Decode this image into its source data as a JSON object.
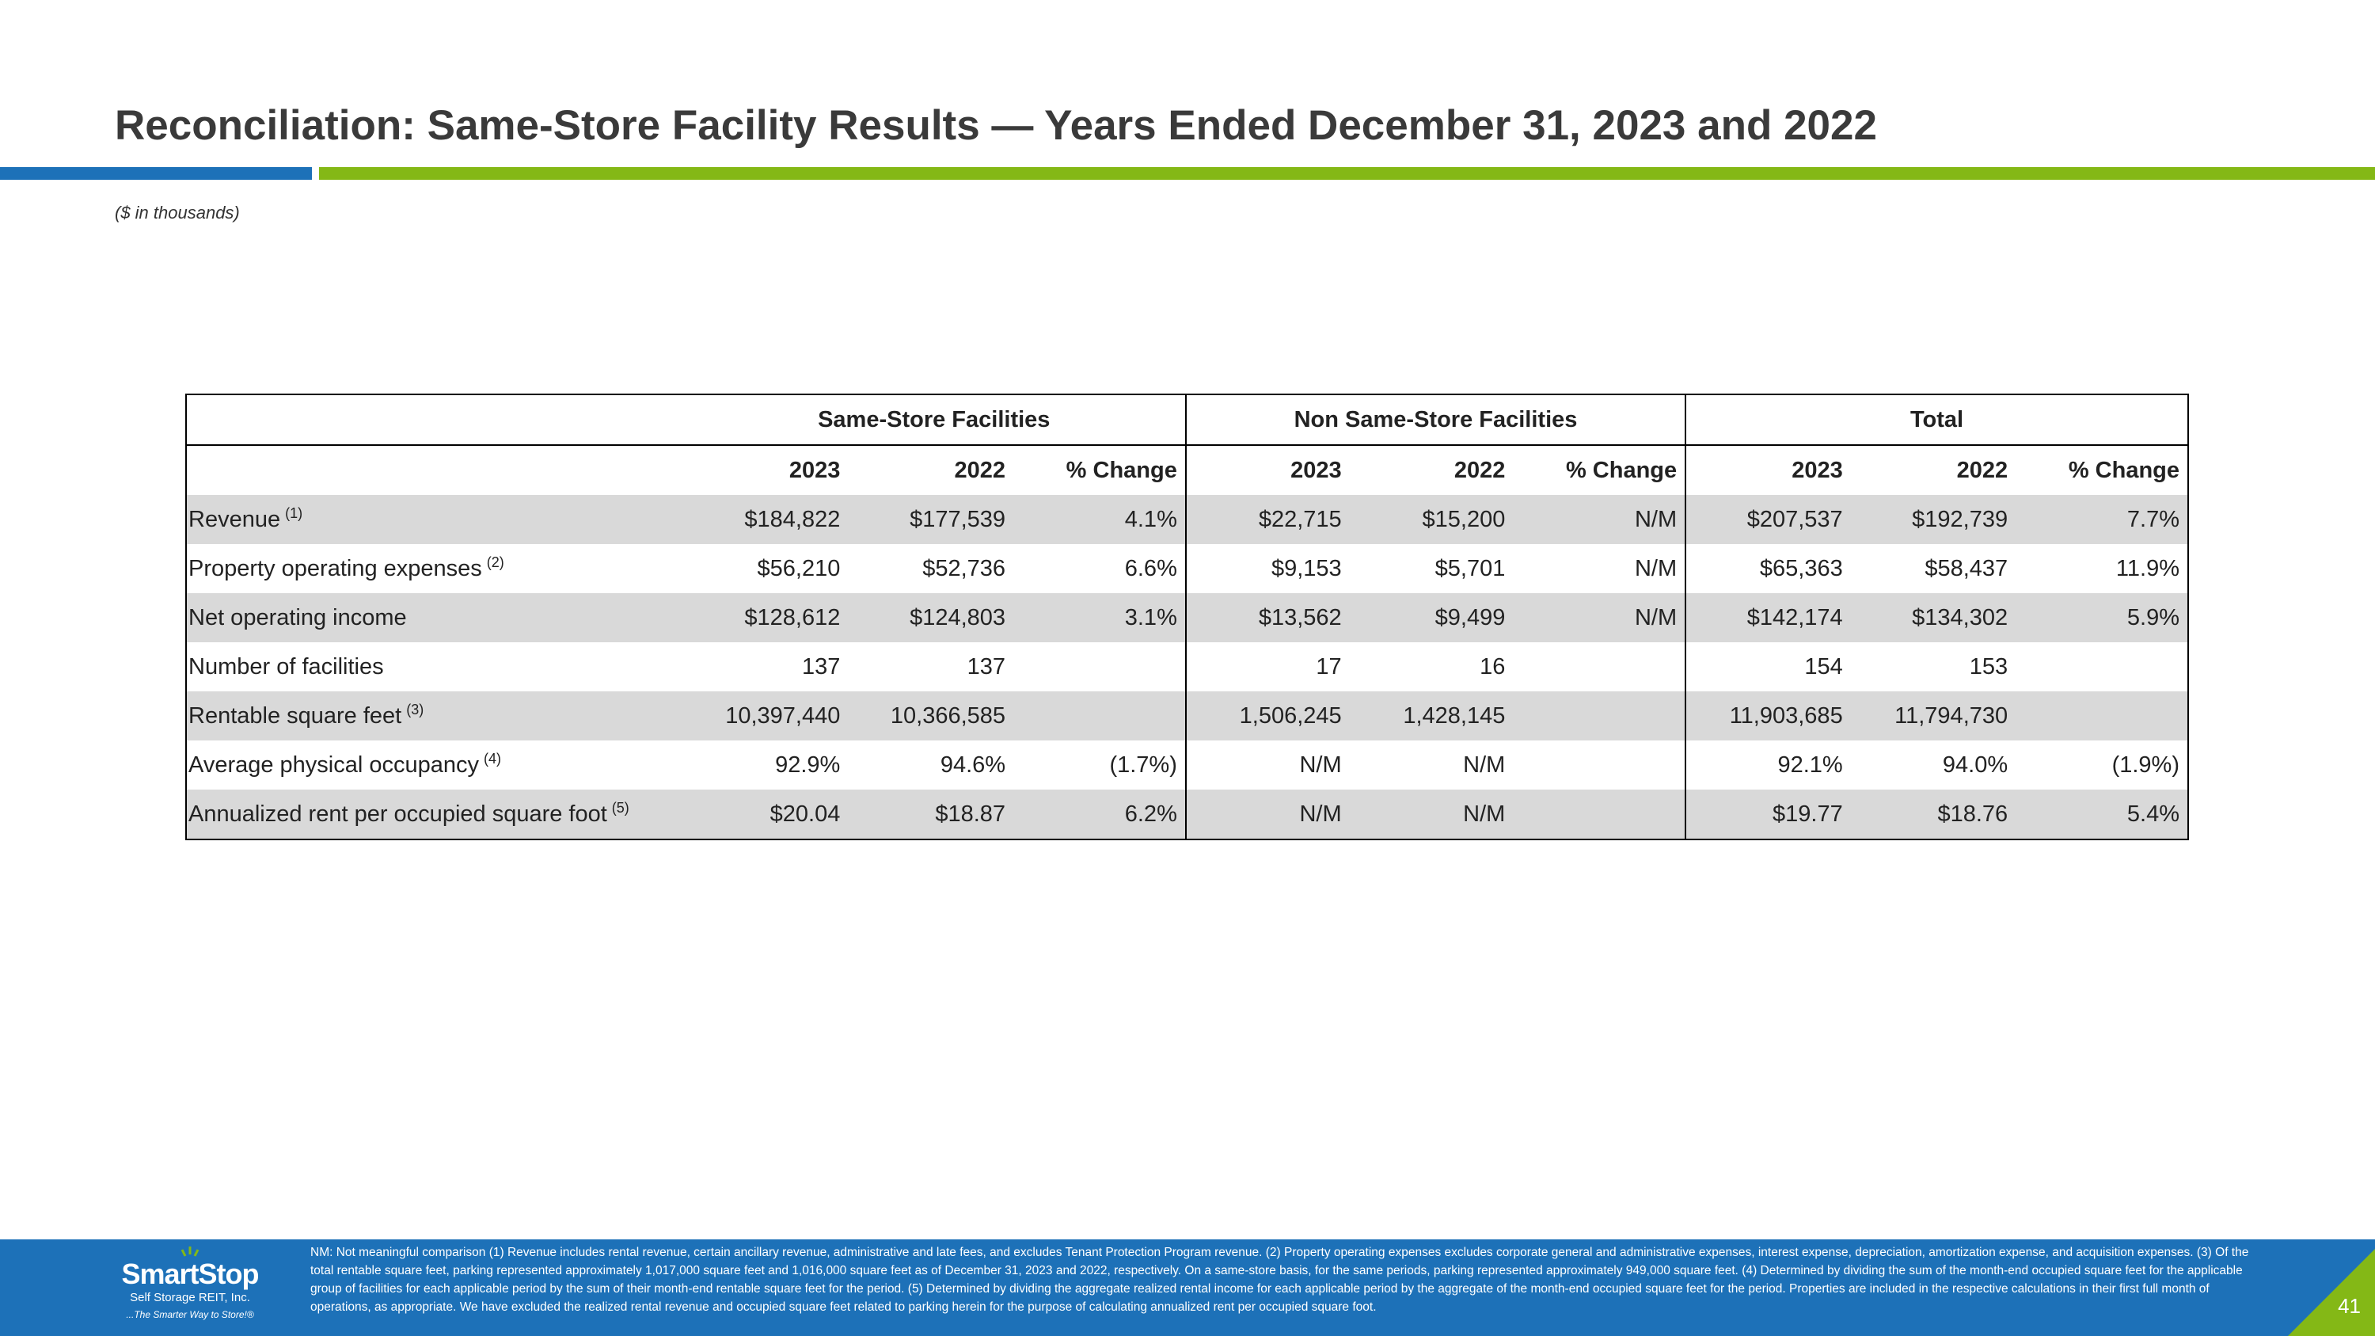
{
  "header": {
    "title": "Reconciliation: Same-Store Facility Results — Years Ended December 31, 2023 and 2022",
    "subtitle": "($ in thousands)",
    "colors": {
      "blue": "#1d71b8",
      "green": "#84b816"
    }
  },
  "table": {
    "groups": [
      "Same-Store Facilities",
      "Non Same-Store Facilities",
      "Total"
    ],
    "year_cols": [
      "2023",
      "2022",
      "% Change",
      "2023",
      "2022",
      "% Change",
      "2023",
      "2022",
      "% Change"
    ],
    "rows": [
      {
        "label": "Revenue",
        "note": "(1)",
        "cells": [
          "$184,822",
          "$177,539",
          "4.1%",
          "$22,715",
          "$15,200",
          "N/M",
          "$207,537",
          "$192,739",
          "7.7%"
        ]
      },
      {
        "label": "Property operating expenses",
        "note": "(2)",
        "cells": [
          "$56,210",
          "$52,736",
          "6.6%",
          "$9,153",
          "$5,701",
          "N/M",
          "$65,363",
          "$58,437",
          "11.9%"
        ]
      },
      {
        "label": "Net operating income",
        "note": "",
        "cells": [
          "$128,612",
          "$124,803",
          "3.1%",
          "$13,562",
          "$9,499",
          "N/M",
          "$142,174",
          "$134,302",
          "5.9%"
        ]
      },
      {
        "label": "Number of facilities",
        "note": "",
        "cells": [
          "137",
          "137",
          "",
          "17",
          "16",
          "",
          "154",
          "153",
          ""
        ]
      },
      {
        "label": "Rentable square feet",
        "note": "(3)",
        "cells": [
          "10,397,440",
          "10,366,585",
          "",
          "1,506,245",
          "1,428,145",
          "",
          "11,903,685",
          "11,794,730",
          ""
        ]
      },
      {
        "label": "Average physical occupancy",
        "note": "(4)",
        "cells": [
          "92.9%",
          "94.6%",
          "(1.7%)",
          "N/M",
          "N/M",
          "",
          "92.1%",
          "94.0%",
          "(1.9%)"
        ]
      },
      {
        "label": "Annualized rent per occupied square foot",
        "note": "(5)",
        "cells": [
          "$20.04",
          "$18.87",
          "6.2%",
          "N/M",
          "N/M",
          "",
          "$19.77",
          "$18.76",
          "5.4%"
        ]
      }
    ]
  },
  "footer": {
    "logo": {
      "brand": "SmartStop",
      "company": "Self Storage REIT, Inc.",
      "tagline": "...The Smarter Way to Store!®"
    },
    "footnote": "NM: Not meaningful comparison  (1) Revenue includes rental revenue, certain ancillary revenue, administrative and late fees, and excludes Tenant Protection Program revenue. (2) Property operating expenses excludes corporate general and administrative expenses, interest expense, depreciation, amortization expense, and acquisition expenses. (3) Of the total rentable square feet, parking represented approximately 1,017,000 square feet and 1,016,000 square feet as of December 31, 2023 and 2022, respectively. On a same-store basis, for the same periods, parking represented approximately 949,000 square feet. (4) Determined by dividing the sum of the month-end occupied square feet for the applicable group of facilities for each applicable period by the sum of their month-end rentable square feet for the period. (5) Determined by dividing the aggregate realized rental income for each applicable period by the aggregate of the month-end occupied square feet for the period. Properties are included in the respective calculations in their first full month of operations, as appropriate. We have excluded the realized rental revenue and occupied square feet related to parking herein for the purpose of calculating annualized rent per occupied square foot.",
    "page_number": "41"
  }
}
